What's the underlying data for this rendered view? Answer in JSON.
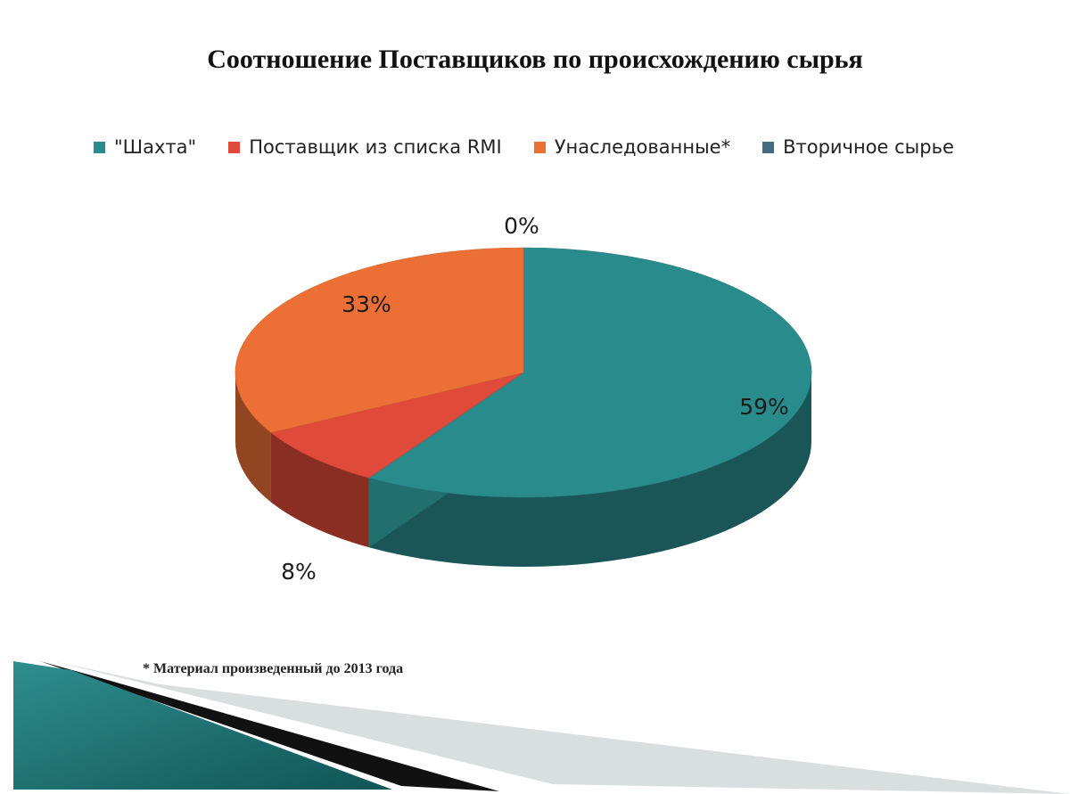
{
  "colors": {
    "shakhta": "#2a8b8c",
    "rmi": "#df4a3a",
    "inherited": "#ec7035",
    "secondary": "#466b85"
  },
  "chart_data": {
    "type": "pie",
    "title": "Соотношение Поставщиков по происхождению сырья",
    "legend_position": "top",
    "slices": [
      {
        "name": "\"Шахта\"",
        "value": 59,
        "label": "59%",
        "color": "#2a8b8c"
      },
      {
        "name": "Поставщик из списка RMI",
        "value": 8,
        "label": "8%",
        "color": "#df4a3a"
      },
      {
        "name": "Унаследованные*",
        "value": 33,
        "label": "33%",
        "color": "#ec7035"
      },
      {
        "name": "Вторичное сырье",
        "value": 0,
        "label": "0%",
        "color": "#466b85"
      }
    ],
    "footnote": "* Материал произведенный до 2013 года"
  }
}
